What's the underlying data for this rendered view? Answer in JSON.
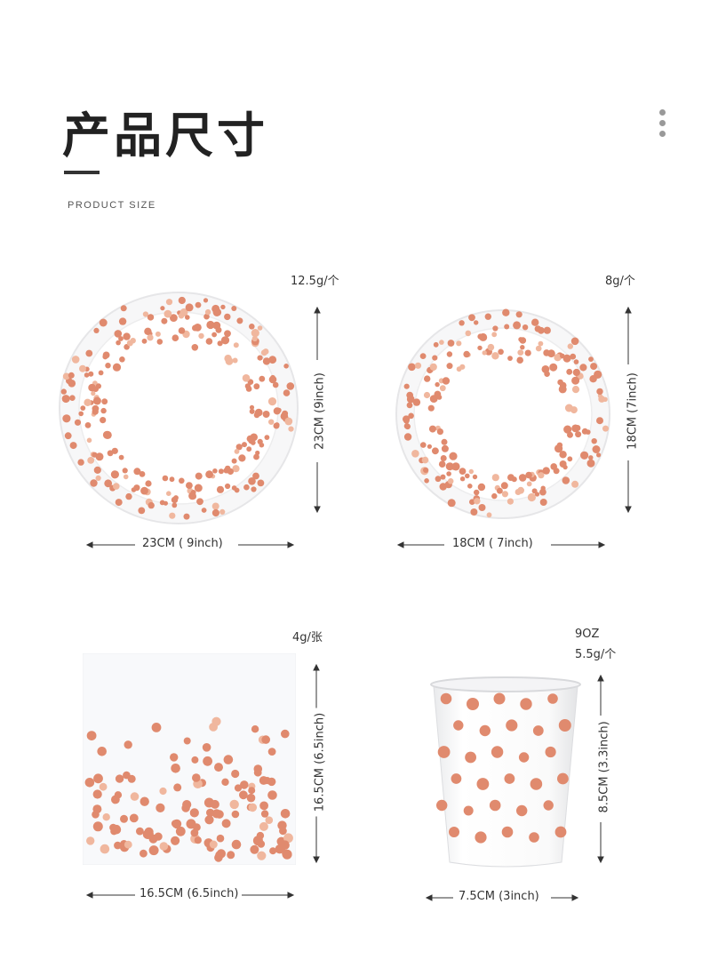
{
  "header": {
    "title": "产品尺寸",
    "subtitle": "PRODUCT SIZE"
  },
  "colors": {
    "dot": "#e08a6e",
    "dot_light": "#f0b79e",
    "plate_rim": "#e8e8ea"
  },
  "products": {
    "large_plate": {
      "weight": "12.5g/个",
      "width_label": "23CM ( 9inch)",
      "height_label": "23CM (9inch)"
    },
    "small_plate": {
      "weight": "8g/个",
      "width_label": "18CM ( 7inch)",
      "height_label": "18CM (7inch)"
    },
    "napkin": {
      "weight": "4g/张",
      "width_label": "16.5CM (6.5inch)",
      "height_label": "16.5CM (6.5inch)"
    },
    "cup": {
      "capacity": "9OZ",
      "weight": "5.5g/个",
      "width_label": "7.5CM (3inch)",
      "height_label": "8.5CM (3.3inch)"
    }
  }
}
